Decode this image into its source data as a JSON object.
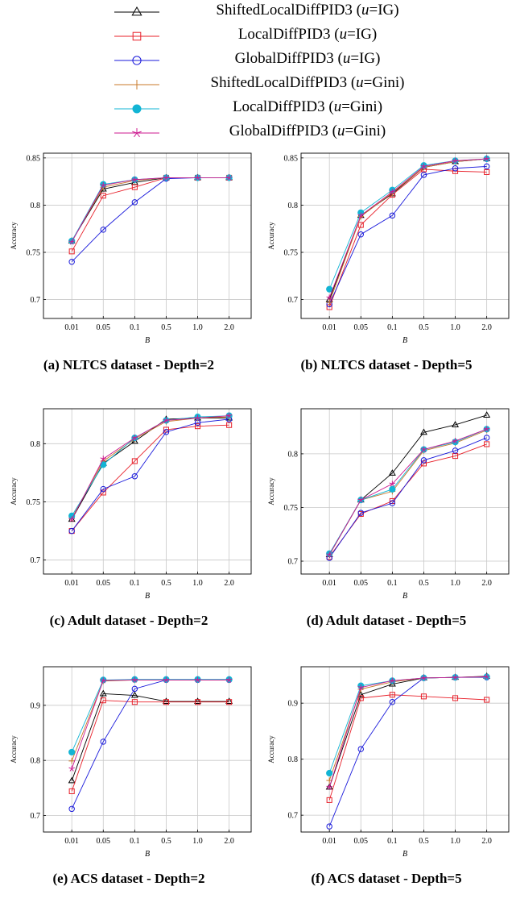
{
  "legend": [
    {
      "name": "ShiftedLocalDiffPID3 (u=IG)",
      "prefix": "ShiftedLocalDiffPID3 (",
      "var": "u",
      "suffix": "=IG)",
      "color": "#000000",
      "marker": "triangle"
    },
    {
      "name": "LocalDiffPID3 (u=IG)",
      "prefix": "LocalDiffPID3 (",
      "var": "u",
      "suffix": "=IG)",
      "color": "#e8202a",
      "marker": "square"
    },
    {
      "name": "GlobalDiffPID3 (u=IG)",
      "prefix": "GlobalDiffPID3 (",
      "var": "u",
      "suffix": "=IG)",
      "color": "#1a1adb",
      "marker": "circle"
    },
    {
      "name": "ShiftedLocalDiffPID3 (u=Gini)",
      "prefix": "ShiftedLocalDiffPID3 (",
      "var": "u",
      "suffix": "=Gini)",
      "color": "#c8782a",
      "marker": "plus"
    },
    {
      "name": "LocalDiffPID3 (u=Gini)",
      "prefix": "LocalDiffPID3 (",
      "var": "u",
      "suffix": "=Gini)",
      "color": "#12b4d4",
      "marker": "filled-circle"
    },
    {
      "name": "GlobalDiffPID3 (u=Gini)",
      "prefix": "GlobalDiffPID3 (",
      "var": "u",
      "suffix": "=Gini)",
      "color": "#cc1a8f",
      "marker": "star"
    }
  ],
  "chart_data": [
    {
      "type": "line",
      "caption": "(a) NLTCS dataset - Depth=2",
      "xlabel": "B",
      "ylabel": "Accuracy",
      "categories": [
        "0.01",
        "0.05",
        "0.1",
        "0.5",
        "1.0",
        "2.0"
      ],
      "ylim": [
        0.68,
        0.855
      ],
      "yticks": [
        0.7,
        0.75,
        0.8,
        0.85
      ],
      "ytick_labels": [
        "0.7",
        "0.75",
        "0.8",
        "0.85"
      ],
      "grid": true,
      "series": [
        {
          "values": [
            0.762,
            0.817,
            0.824,
            0.829,
            0.829,
            0.829
          ]
        },
        {
          "values": [
            0.751,
            0.81,
            0.819,
            0.829,
            0.829,
            0.829
          ]
        },
        {
          "values": [
            0.74,
            0.774,
            0.803,
            0.828,
            0.829,
            0.829
          ]
        },
        {
          "values": [
            0.762,
            0.819,
            0.826,
            0.829,
            0.829,
            0.829
          ]
        },
        {
          "values": [
            0.762,
            0.822,
            0.827,
            0.829,
            0.829,
            0.829
          ]
        },
        {
          "values": [
            0.761,
            0.821,
            0.827,
            0.829,
            0.829,
            0.829
          ]
        }
      ]
    },
    {
      "type": "line",
      "caption": "(b) NLTCS dataset - Depth=5",
      "xlabel": "B",
      "ylabel": "Accuracy",
      "categories": [
        "0.01",
        "0.05",
        "0.1",
        "0.5",
        "1.0",
        "2.0"
      ],
      "ylim": [
        0.68,
        0.855
      ],
      "yticks": [
        0.7,
        0.75,
        0.8,
        0.85
      ],
      "ytick_labels": [
        "0.7",
        "0.75",
        "0.8",
        "0.85"
      ],
      "grid": true,
      "series": [
        {
          "values": [
            0.7,
            0.789,
            0.812,
            0.84,
            0.846,
            0.849
          ]
        },
        {
          "values": [
            0.692,
            0.779,
            0.811,
            0.838,
            0.836,
            0.835
          ]
        },
        {
          "values": [
            0.695,
            0.769,
            0.789,
            0.832,
            0.839,
            0.841
          ]
        },
        {
          "values": [
            0.697,
            0.788,
            0.813,
            0.84,
            0.846,
            0.849
          ]
        },
        {
          "values": [
            0.711,
            0.792,
            0.816,
            0.842,
            0.847,
            0.849
          ]
        },
        {
          "values": [
            0.702,
            0.789,
            0.814,
            0.841,
            0.847,
            0.849
          ]
        }
      ]
    },
    {
      "type": "line",
      "caption": "(c) Adult dataset - Depth=2",
      "xlabel": "B",
      "ylabel": "Accuracy",
      "categories": [
        "0.01",
        "0.05",
        "0.1",
        "0.5",
        "1.0",
        "2.0"
      ],
      "ylim": [
        0.688,
        0.83
      ],
      "yticks": [
        0.7,
        0.75,
        0.8
      ],
      "ytick_labels": [
        "0.7",
        "0.75",
        "0.8"
      ],
      "grid": true,
      "series": [
        {
          "values": [
            0.735,
            0.783,
            0.802,
            0.821,
            0.822,
            0.822
          ]
        },
        {
          "values": [
            0.725,
            0.758,
            0.785,
            0.812,
            0.815,
            0.816
          ]
        },
        {
          "values": [
            0.725,
            0.761,
            0.772,
            0.81,
            0.818,
            0.821
          ]
        },
        {
          "values": [
            0.736,
            0.785,
            0.804,
            0.819,
            0.822,
            0.823
          ]
        },
        {
          "values": [
            0.738,
            0.782,
            0.805,
            0.82,
            0.823,
            0.824
          ]
        },
        {
          "values": [
            0.735,
            0.787,
            0.805,
            0.82,
            0.822,
            0.824
          ]
        }
      ]
    },
    {
      "type": "line",
      "caption": "(d) Adult dataset - Depth=5",
      "xlabel": "B",
      "ylabel": "Accuracy",
      "categories": [
        "0.01",
        "0.05",
        "0.1",
        "0.5",
        "1.0",
        "2.0"
      ],
      "ylim": [
        0.688,
        0.842
      ],
      "yticks": [
        0.7,
        0.75,
        0.8
      ],
      "ytick_labels": [
        "0.7",
        "0.75",
        "0.8"
      ],
      "grid": true,
      "series": [
        {
          "values": [
            0.706,
            0.757,
            0.782,
            0.82,
            0.827,
            0.836
          ]
        },
        {
          "values": [
            0.704,
            0.744,
            0.756,
            0.791,
            0.798,
            0.809
          ]
        },
        {
          "values": [
            0.703,
            0.745,
            0.754,
            0.794,
            0.803,
            0.815
          ]
        },
        {
          "values": [
            0.706,
            0.757,
            0.765,
            0.803,
            0.81,
            0.822
          ]
        },
        {
          "values": [
            0.707,
            0.757,
            0.767,
            0.804,
            0.811,
            0.823
          ]
        },
        {
          "values": [
            0.706,
            0.757,
            0.772,
            0.804,
            0.812,
            0.823
          ]
        }
      ]
    },
    {
      "type": "line",
      "caption": "(e) ACS dataset - Depth=2",
      "xlabel": "B",
      "ylabel": "Accuracy",
      "categories": [
        "0.01",
        "0.05",
        "0.1",
        "0.5",
        "1.0",
        "2.0"
      ],
      "ylim": [
        0.67,
        0.97
      ],
      "yticks": [
        0.7,
        0.8,
        0.9
      ],
      "ytick_labels": [
        "0.7",
        "0.8",
        "0.9"
      ],
      "grid": true,
      "series": [
        {
          "values": [
            0.763,
            0.921,
            0.918,
            0.907,
            0.907,
            0.907
          ]
        },
        {
          "values": [
            0.744,
            0.909,
            0.906,
            0.906,
            0.906,
            0.906
          ]
        },
        {
          "values": [
            0.712,
            0.834,
            0.93,
            0.946,
            0.946,
            0.946
          ]
        },
        {
          "values": [
            0.799,
            0.944,
            0.946,
            0.946,
            0.946,
            0.946
          ]
        },
        {
          "values": [
            0.815,
            0.946,
            0.947,
            0.947,
            0.947,
            0.947
          ]
        },
        {
          "values": [
            0.785,
            0.945,
            0.946,
            0.946,
            0.946,
            0.946
          ]
        }
      ]
    },
    {
      "type": "line",
      "caption": "(f) ACS dataset - Depth=5",
      "xlabel": "B",
      "ylabel": "Accuracy",
      "categories": [
        "0.01",
        "0.05",
        "0.1",
        "0.5",
        "1.0",
        "2.0"
      ],
      "ylim": [
        0.67,
        0.965
      ],
      "yticks": [
        0.7,
        0.8,
        0.9
      ],
      "ytick_labels": [
        "0.7",
        "0.8",
        "0.9"
      ],
      "grid": true,
      "series": [
        {
          "values": [
            0.75,
            0.915,
            0.934,
            0.945,
            0.946,
            0.948
          ]
        },
        {
          "values": [
            0.727,
            0.909,
            0.915,
            0.912,
            0.909,
            0.906
          ]
        },
        {
          "values": [
            0.68,
            0.818,
            0.902,
            0.945,
            0.946,
            0.946
          ]
        },
        {
          "values": [
            0.762,
            0.925,
            0.938,
            0.945,
            0.946,
            0.947
          ]
        },
        {
          "values": [
            0.775,
            0.931,
            0.94,
            0.945,
            0.946,
            0.947
          ]
        },
        {
          "values": [
            0.75,
            0.928,
            0.94,
            0.945,
            0.946,
            0.947
          ]
        }
      ]
    }
  ]
}
